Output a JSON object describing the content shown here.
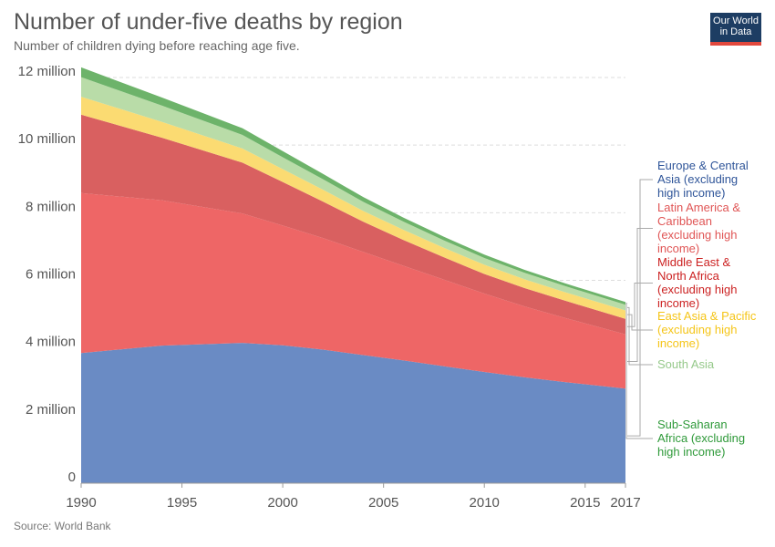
{
  "header": {
    "title": "Number of under-five deaths by region",
    "subtitle": "Number of children dying before reaching age five."
  },
  "logo": {
    "line1": "Our World",
    "line2": "in Data",
    "bg_color": "#1d3d63",
    "accent_color": "#e2483d"
  },
  "footer": {
    "source": "Source: World Bank"
  },
  "chart_data": {
    "type": "area",
    "stacked": true,
    "x": [
      1990,
      1994,
      1998,
      2000,
      2002,
      2004,
      2006,
      2008,
      2010,
      2012,
      2014,
      2017
    ],
    "xlim": [
      1990,
      2017
    ],
    "x_ticks": [
      1990,
      1995,
      2000,
      2005,
      2010,
      2015,
      2017
    ],
    "x_tick_labels": [
      "1990",
      "1995",
      "2000",
      "2005",
      "2010",
      "2015",
      "2017"
    ],
    "ylim": [
      0,
      12000000
    ],
    "y_ticks": [
      0,
      2000000,
      4000000,
      6000000,
      8000000,
      10000000,
      12000000
    ],
    "y_tick_labels": [
      "0",
      "2 million",
      "4 million",
      "6 million",
      "8 million",
      "10 million",
      "12 million"
    ],
    "grid": "horizontal dashed",
    "legend": "right, labels at series end",
    "series": [
      {
        "name": "Sub-Saharan Africa (excluding high income)",
        "color": "#6a8bc4",
        "label_color": "#2f5599",
        "values": [
          3850000,
          4070000,
          4150000,
          4080000,
          3950000,
          3790000,
          3630000,
          3460000,
          3290000,
          3130000,
          2990000,
          2800000
        ]
      },
      {
        "name": "South Asia",
        "color": "#ee6666",
        "label_color": "#e05555",
        "values": [
          4730000,
          4300000,
          3830000,
          3540000,
          3300000,
          3050000,
          2800000,
          2560000,
          2320000,
          2100000,
          1900000,
          1600000
        ]
      },
      {
        "name": "East Asia & Pacific (excluding high income)",
        "color": "#d96060",
        "label_color": "#cc2222",
        "values": [
          2320000,
          1850000,
          1500000,
          1290000,
          1080000,
          890000,
          760000,
          660000,
          580000,
          540000,
          510000,
          460000
        ]
      },
      {
        "name": "Middle East & North Africa (excluding high income)",
        "color": "#fbdb72",
        "label_color": "#f5c518",
        "values": [
          530000,
          470000,
          420000,
          380000,
          350000,
          320000,
          300000,
          280000,
          270000,
          260000,
          250000,
          250000
        ]
      },
      {
        "name": "Latin America & Caribbean (excluding high income)",
        "color": "#b9dca8",
        "label_color": "#96c98b",
        "values": [
          580000,
          480000,
          400000,
          350000,
          310000,
          270000,
          240000,
          220000,
          200000,
          190000,
          180000,
          170000
        ]
      },
      {
        "name": "Europe & Central Asia (excluding high income)",
        "color": "#6db36a",
        "label_color": "#2f9a3a",
        "values": [
          290000,
          240000,
          200000,
          180000,
          160000,
          140000,
          120000,
          110000,
          100000,
          90000,
          80000,
          80000
        ]
      }
    ],
    "legend_entries": [
      {
        "lines": [
          "Europe & Central",
          "Asia (excluding",
          "high income)"
        ]
      },
      {
        "lines": [
          "Latin America &",
          "Caribbean",
          "(excluding high",
          "income)"
        ]
      },
      {
        "lines": [
          "Middle East &",
          "North Africa",
          "(excluding high",
          "income)"
        ]
      },
      {
        "lines": [
          "East Asia & Pacific",
          "(excluding high",
          "income)"
        ]
      },
      {
        "lines": [
          "South Asia"
        ]
      },
      {
        "lines": [
          "Sub-Saharan",
          "Africa (excluding",
          "high income)"
        ]
      }
    ]
  }
}
